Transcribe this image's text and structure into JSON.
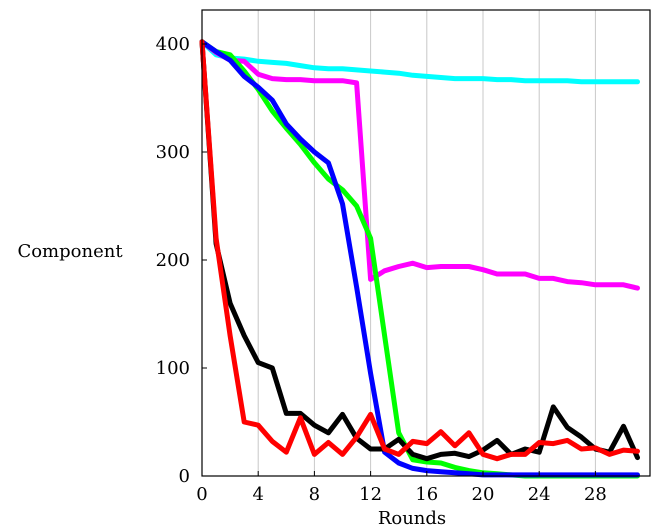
{
  "chart_data": {
    "type": "line",
    "xlabel": "Rounds",
    "ylabel": "Component",
    "xlim": [
      0,
      31
    ],
    "ylim": [
      0,
      402
    ],
    "xticks": [
      0,
      4,
      8,
      12,
      16,
      20,
      24,
      28
    ],
    "yticks": [
      0,
      100,
      200,
      300,
      400
    ],
    "grid": "vertical",
    "series": [
      {
        "color": "#00ffff",
        "x": [
          0,
          1,
          2,
          3,
          4,
          5,
          6,
          7,
          8,
          9,
          10,
          11,
          12,
          13,
          14,
          15,
          16,
          17,
          18,
          19,
          20,
          21,
          22,
          23,
          24,
          25,
          26,
          27,
          28,
          29,
          30,
          31
        ],
        "values": [
          402,
          390,
          387,
          386,
          384,
          383,
          382,
          380,
          378,
          377,
          377,
          376,
          375,
          374,
          373,
          371,
          370,
          369,
          368,
          368,
          368,
          367,
          367,
          366,
          366,
          366,
          366,
          365,
          365,
          365,
          365,
          365
        ]
      },
      {
        "color": "#ff00ff",
        "x": [
          0,
          1,
          2,
          3,
          4,
          5,
          6,
          7,
          8,
          9,
          10,
          11,
          12,
          13,
          14,
          15,
          16,
          17,
          18,
          19,
          20,
          21,
          22,
          23,
          24,
          25,
          26,
          27,
          28,
          29,
          30,
          31
        ],
        "values": [
          402,
          392,
          385,
          384,
          372,
          368,
          367,
          367,
          366,
          366,
          366,
          364,
          182,
          190,
          194,
          197,
          193,
          194,
          194,
          194,
          191,
          187,
          187,
          187,
          183,
          183,
          180,
          179,
          177,
          177,
          177,
          174
        ]
      },
      {
        "color": "#00ff00",
        "x": [
          0,
          1,
          2,
          3,
          4,
          5,
          6,
          7,
          8,
          9,
          10,
          11,
          12,
          13,
          14,
          15,
          16,
          17,
          18,
          19,
          20,
          21,
          22,
          23,
          24,
          25,
          26,
          27,
          28,
          29,
          30,
          31
        ],
        "values": [
          402,
          393,
          390,
          375,
          358,
          338,
          322,
          307,
          290,
          275,
          265,
          250,
          220,
          130,
          40,
          15,
          13,
          12,
          8,
          5,
          3,
          2,
          1,
          0,
          0,
          0,
          0,
          0,
          0,
          0,
          0,
          0
        ]
      },
      {
        "color": "#0000ff",
        "x": [
          0,
          1,
          2,
          3,
          4,
          5,
          6,
          7,
          8,
          9,
          10,
          11,
          12,
          13,
          14,
          15,
          16,
          17,
          18,
          19,
          20,
          21,
          22,
          23,
          24,
          25,
          26,
          27,
          28,
          29,
          30,
          31
        ],
        "values": [
          402,
          393,
          385,
          370,
          360,
          348,
          326,
          312,
          300,
          290,
          252,
          175,
          95,
          22,
          12,
          7,
          5,
          4,
          3,
          2,
          1,
          1,
          1,
          1,
          1,
          1,
          1,
          1,
          1,
          1,
          1,
          1
        ]
      },
      {
        "color": "#000000",
        "x": [
          0,
          1,
          2,
          3,
          4,
          5,
          6,
          7,
          8,
          9,
          10,
          11,
          12,
          13,
          14,
          15,
          16,
          17,
          18,
          19,
          20,
          21,
          22,
          23,
          24,
          25,
          26,
          27,
          28,
          29,
          30,
          31
        ],
        "values": [
          402,
          215,
          160,
          130,
          105,
          100,
          58,
          58,
          47,
          40,
          57,
          35,
          25,
          25,
          34,
          20,
          16,
          20,
          21,
          18,
          24,
          33,
          20,
          25,
          22,
          64,
          45,
          36,
          25,
          22,
          46,
          17
        ]
      },
      {
        "color": "#ff0000",
        "x": [
          0,
          1,
          2,
          3,
          4,
          5,
          6,
          7,
          8,
          9,
          10,
          11,
          12,
          13,
          14,
          15,
          16,
          17,
          18,
          19,
          20,
          21,
          22,
          23,
          24,
          25,
          26,
          27,
          28,
          29,
          30,
          31
        ],
        "values": [
          402,
          220,
          130,
          50,
          47,
          32,
          22,
          54,
          20,
          31,
          20,
          36,
          57,
          25,
          20,
          32,
          30,
          41,
          28,
          40,
          20,
          16,
          20,
          20,
          31,
          30,
          33,
          25,
          26,
          20,
          24,
          23
        ]
      }
    ]
  }
}
